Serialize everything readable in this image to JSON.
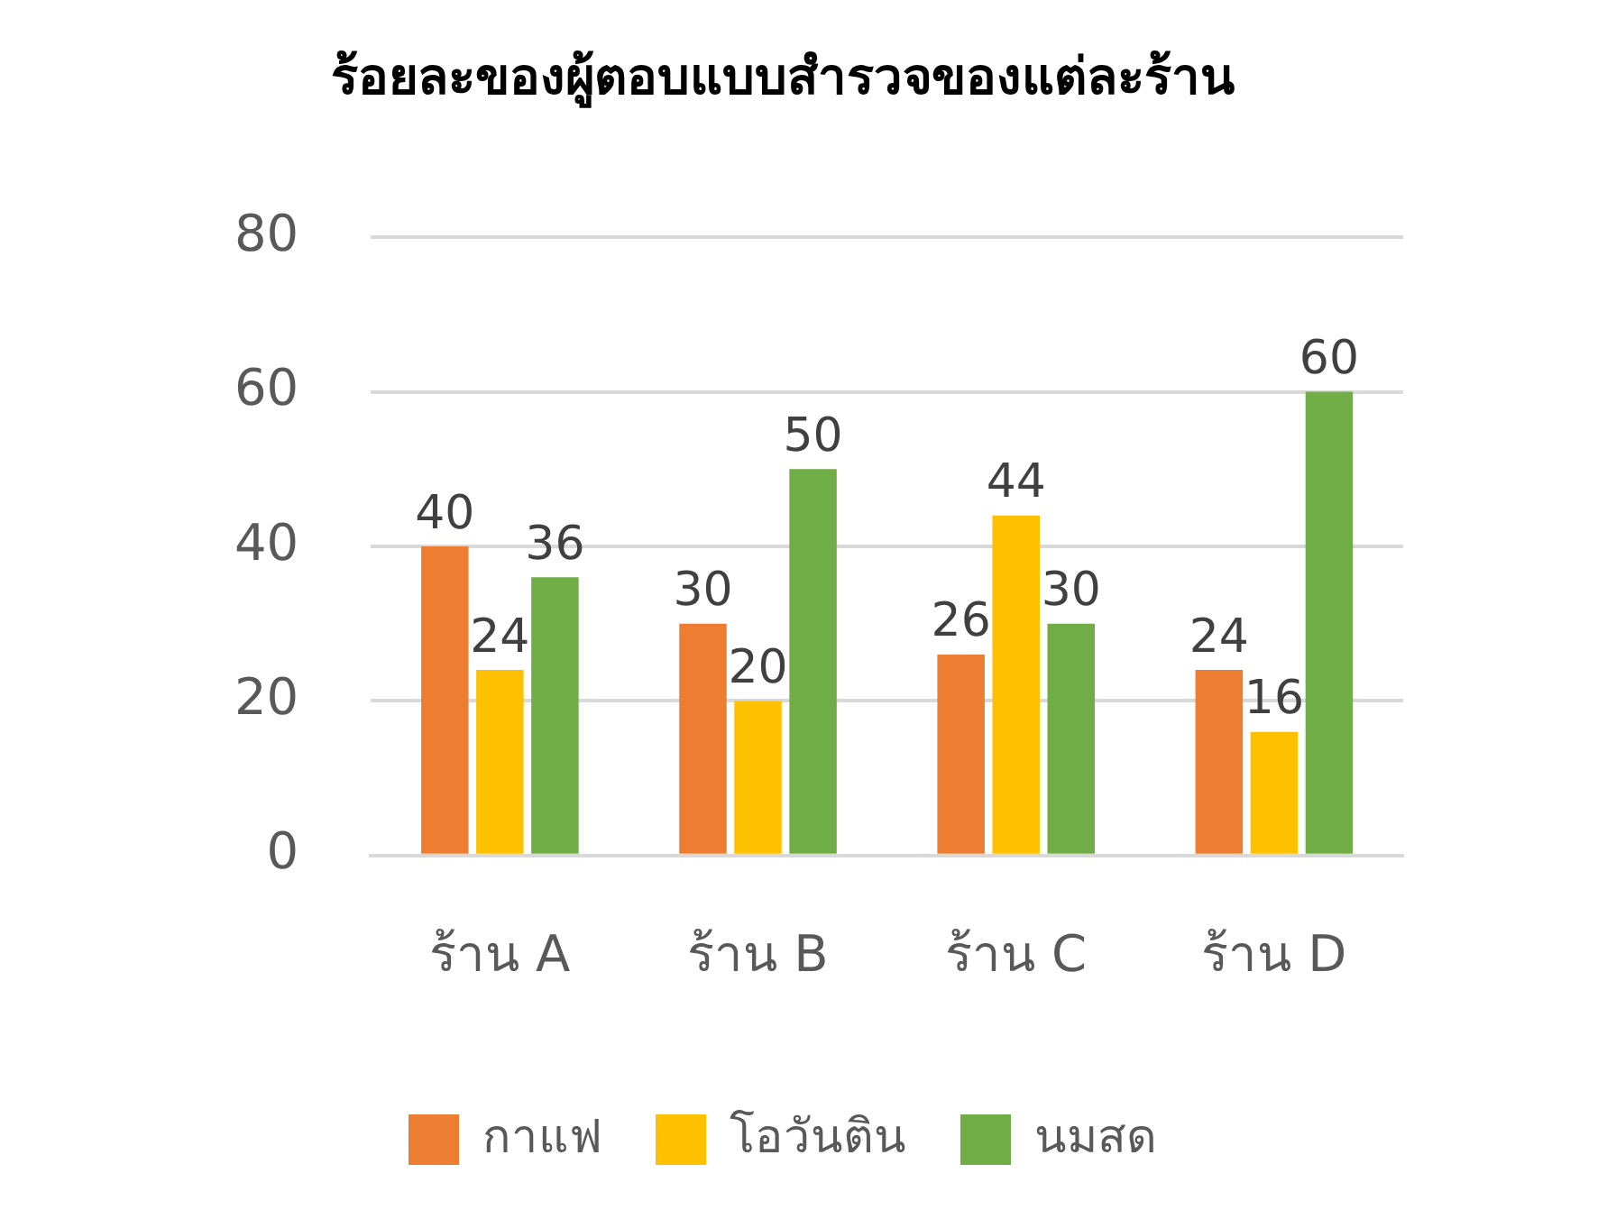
{
  "chart_data": {
    "type": "bar",
    "title": "ร้อยละของผู้ตอบแบบสำรวจของแต่ละร้าน",
    "categories": [
      "ร้าน A",
      "ร้าน B",
      "ร้าน C",
      "ร้าน D"
    ],
    "series": [
      {
        "name": "กาแฟ",
        "color": "#ed7d31",
        "values": [
          40,
          30,
          26,
          24
        ]
      },
      {
        "name": "โอวันติน",
        "color": "#ffc000",
        "values": [
          24,
          20,
          44,
          16
        ]
      },
      {
        "name": "นมสด",
        "color": "#70ad47",
        "values": [
          36,
          50,
          30,
          60
        ]
      }
    ],
    "ylim": [
      0,
      80
    ],
    "yticks": [
      0,
      20,
      40,
      60,
      80
    ],
    "grid": "y",
    "legend": "bottom",
    "data_labels": true
  }
}
